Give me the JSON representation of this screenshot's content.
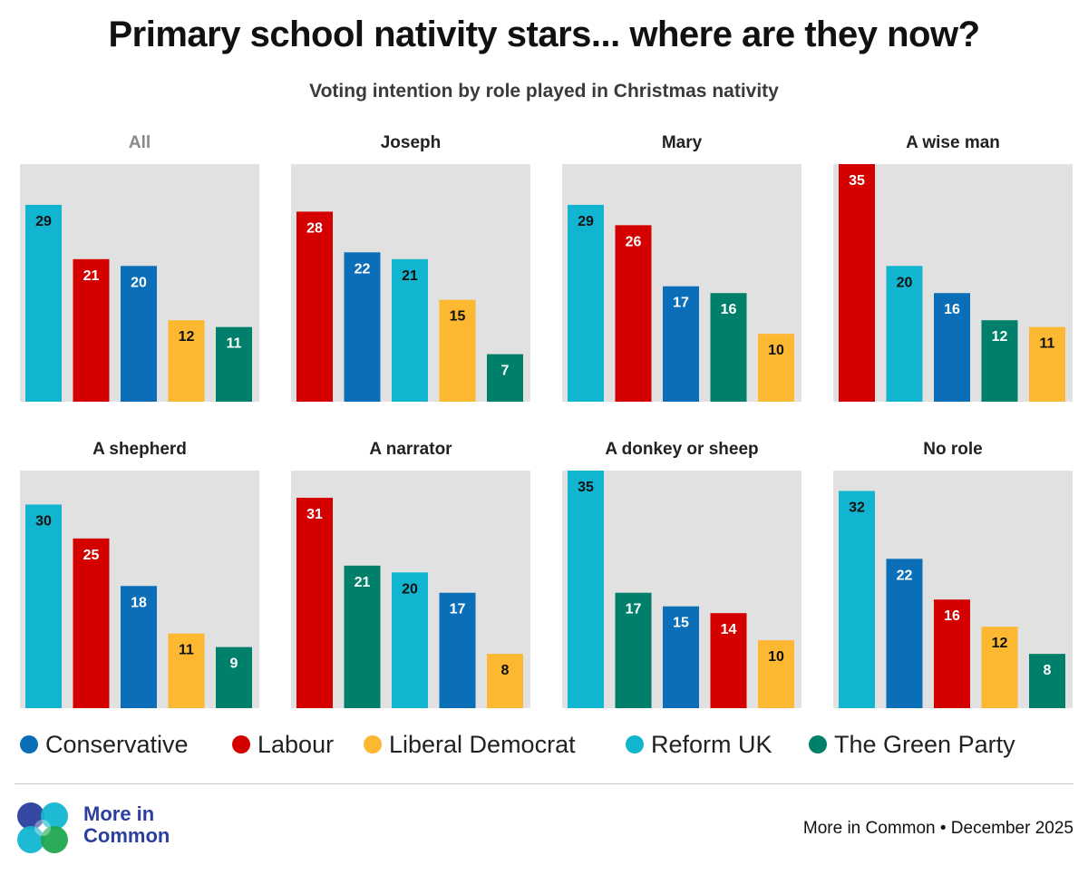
{
  "header": {
    "title": "Primary school nativity stars... where are they now?",
    "subtitle": "Voting intention by role played in Christmas nativity"
  },
  "colors": {
    "Conservative": "#0a6fb8",
    "Labour": "#d40000",
    "Liberal Democrat": "#fbb830",
    "Reform UK": "#12b5d0",
    "The Green Party": "#00806a",
    "panel_bg": "#e1e1e1"
  },
  "chart_data": [
    {
      "type": "bar",
      "title": "All",
      "ylim": [
        0,
        35
      ],
      "categories": [
        "Reform UK",
        "Labour",
        "Conservative",
        "Liberal Democrat",
        "The Green Party"
      ],
      "values": [
        29,
        21,
        20,
        12,
        11
      ]
    },
    {
      "type": "bar",
      "title": "Joseph",
      "ylim": [
        0,
        35
      ],
      "categories": [
        "Labour",
        "Conservative",
        "Reform UK",
        "Liberal Democrat",
        "The Green Party"
      ],
      "values": [
        28,
        22,
        21,
        15,
        7
      ]
    },
    {
      "type": "bar",
      "title": "Mary",
      "ylim": [
        0,
        35
      ],
      "categories": [
        "Reform UK",
        "Labour",
        "Conservative",
        "The Green Party",
        "Liberal Democrat"
      ],
      "values": [
        29,
        26,
        17,
        16,
        10
      ]
    },
    {
      "type": "bar",
      "title": "A wise man",
      "ylim": [
        0,
        35
      ],
      "categories": [
        "Labour",
        "Reform UK",
        "Conservative",
        "The Green Party",
        "Liberal Democrat"
      ],
      "values": [
        35,
        20,
        16,
        12,
        11
      ]
    },
    {
      "type": "bar",
      "title": "A shepherd",
      "ylim": [
        0,
        35
      ],
      "categories": [
        "Reform UK",
        "Labour",
        "Conservative",
        "Liberal Democrat",
        "The Green Party"
      ],
      "values": [
        30,
        25,
        18,
        11,
        9
      ]
    },
    {
      "type": "bar",
      "title": "A narrator",
      "ylim": [
        0,
        35
      ],
      "categories": [
        "Labour",
        "The Green Party",
        "Reform UK",
        "Conservative",
        "Liberal Democrat"
      ],
      "values": [
        31,
        21,
        20,
        17,
        8
      ]
    },
    {
      "type": "bar",
      "title": "A donkey or sheep",
      "ylim": [
        0,
        35
      ],
      "categories": [
        "Reform UK",
        "The Green Party",
        "Conservative",
        "Labour",
        "Liberal Democrat"
      ],
      "values": [
        35,
        17,
        15,
        14,
        10
      ]
    },
    {
      "type": "bar",
      "title": "No role",
      "ylim": [
        0,
        35
      ],
      "categories": [
        "Reform UK",
        "Conservative",
        "Labour",
        "Liberal Democrat",
        "The Green Party"
      ],
      "values": [
        32,
        22,
        16,
        12,
        8
      ]
    }
  ],
  "legend": [
    {
      "label": "Conservative",
      "color": "#0a6fb8"
    },
    {
      "label": "Labour",
      "color": "#d40000"
    },
    {
      "label": "Liberal Democrat",
      "color": "#fbb830"
    },
    {
      "label": "Reform UK",
      "color": "#12b5d0"
    },
    {
      "label": "The Green Party",
      "color": "#00806a"
    }
  ],
  "footer": {
    "logo_line1": "More in",
    "logo_line2": "Common",
    "source": "More in Common • December 2025"
  }
}
